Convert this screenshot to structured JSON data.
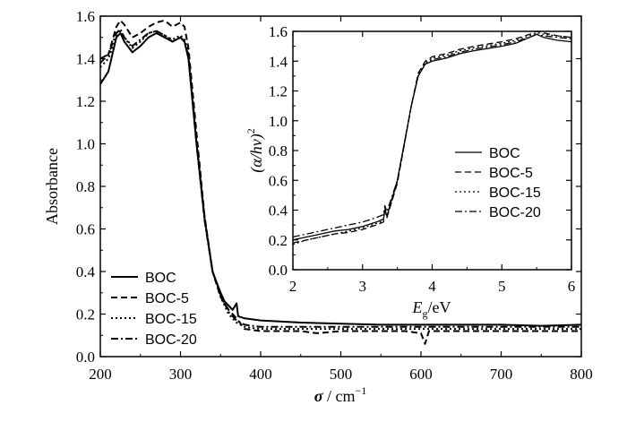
{
  "chart_data": [
    {
      "type": "line",
      "ylabel": "Absorbance",
      "xlabel_symbol": "σ",
      "xlabel_unit": "cm",
      "xlabel_exp": "−1",
      "xlim": [
        200,
        800
      ],
      "ylim": [
        0.0,
        1.6
      ],
      "xticks": [
        "200",
        "300",
        "400",
        "500",
        "600",
        "700",
        "800"
      ],
      "yticks": [
        "0.0",
        "0.2",
        "0.4",
        "0.6",
        "0.8",
        "1.0",
        "1.2",
        "1.4",
        "1.6"
      ],
      "legend_position": "bottom-left",
      "series": [
        {
          "name": "BOC",
          "style": "solid",
          "x": [
            200,
            210,
            220,
            225,
            230,
            240,
            250,
            260,
            270,
            280,
            290,
            300,
            305,
            310,
            320,
            330,
            340,
            350,
            355,
            360,
            365,
            370,
            372,
            380,
            400,
            450,
            500,
            550,
            600,
            650,
            700,
            750,
            800
          ],
          "y": [
            1.28,
            1.34,
            1.5,
            1.52,
            1.48,
            1.43,
            1.46,
            1.5,
            1.52,
            1.5,
            1.48,
            1.5,
            1.48,
            1.4,
            1.0,
            0.65,
            0.4,
            0.3,
            0.26,
            0.24,
            0.22,
            0.25,
            0.19,
            0.18,
            0.17,
            0.16,
            0.155,
            0.15,
            0.15,
            0.15,
            0.15,
            0.145,
            0.15
          ]
        },
        {
          "name": "BOC-5",
          "style": "dashed",
          "x": [
            200,
            210,
            220,
            225,
            230,
            240,
            250,
            260,
            270,
            280,
            290,
            300,
            305,
            310,
            320,
            330,
            340,
            350,
            360,
            365,
            370,
            380,
            400,
            450,
            470,
            500,
            550,
            580,
            600,
            605,
            610,
            650,
            700,
            750,
            800
          ],
          "y": [
            1.38,
            1.42,
            1.55,
            1.58,
            1.56,
            1.5,
            1.52,
            1.55,
            1.57,
            1.58,
            1.55,
            1.57,
            1.55,
            1.45,
            1.05,
            0.66,
            0.4,
            0.28,
            0.22,
            0.2,
            0.18,
            0.13,
            0.12,
            0.12,
            0.11,
            0.12,
            0.12,
            0.12,
            0.11,
            0.06,
            0.12,
            0.12,
            0.12,
            0.12,
            0.12
          ]
        },
        {
          "name": "BOC-15",
          "style": "dotted",
          "x": [
            200,
            210,
            220,
            225,
            230,
            240,
            250,
            260,
            270,
            280,
            290,
            300,
            305,
            310,
            320,
            330,
            340,
            350,
            360,
            370,
            380,
            400,
            450,
            500,
            550,
            600,
            650,
            700,
            750,
            800
          ],
          "y": [
            1.36,
            1.4,
            1.5,
            1.53,
            1.5,
            1.45,
            1.48,
            1.52,
            1.53,
            1.51,
            1.49,
            1.51,
            1.49,
            1.42,
            1.02,
            0.65,
            0.4,
            0.28,
            0.2,
            0.16,
            0.14,
            0.13,
            0.13,
            0.13,
            0.13,
            0.13,
            0.13,
            0.13,
            0.13,
            0.13
          ]
        },
        {
          "name": "BOC-20",
          "style": "dashdot",
          "x": [
            200,
            210,
            220,
            225,
            230,
            240,
            250,
            260,
            270,
            280,
            290,
            300,
            305,
            310,
            320,
            330,
            340,
            350,
            360,
            370,
            380,
            400,
            450,
            500,
            550,
            600,
            650,
            700,
            750,
            800
          ],
          "y": [
            1.4,
            1.42,
            1.52,
            1.54,
            1.5,
            1.46,
            1.49,
            1.52,
            1.53,
            1.51,
            1.48,
            1.5,
            1.48,
            1.41,
            1.0,
            0.64,
            0.4,
            0.29,
            0.21,
            0.17,
            0.15,
            0.14,
            0.14,
            0.14,
            0.14,
            0.14,
            0.14,
            0.14,
            0.14,
            0.14
          ]
        }
      ]
    },
    {
      "type": "line",
      "role": "inset",
      "ylabel_main": "(α/hν)",
      "ylabel_exp": "2",
      "xlabel_symbol": "E",
      "xlabel_sub": "g",
      "xlabel_unit": "/eV",
      "xlim": [
        2,
        6
      ],
      "ylim": [
        0.0,
        1.6
      ],
      "xticks": [
        "2",
        "3",
        "4",
        "5",
        "6"
      ],
      "yticks": [
        "0.0",
        "0.2",
        "0.4",
        "0.6",
        "0.8",
        "1.0",
        "1.2",
        "1.4",
        "1.6"
      ],
      "legend_position": "right-middle",
      "series": [
        {
          "name": "BOC",
          "style": "solid",
          "x": [
            2.0,
            2.2,
            2.4,
            2.6,
            2.8,
            3.0,
            3.2,
            3.3,
            3.32,
            3.35,
            3.5,
            3.6,
            3.7,
            3.8,
            3.9,
            4.0,
            4.2,
            4.4,
            4.6,
            5.0,
            5.2,
            5.4,
            5.5,
            5.6,
            5.8,
            6.0
          ],
          "y": [
            0.2,
            0.22,
            0.24,
            0.26,
            0.27,
            0.29,
            0.32,
            0.34,
            0.4,
            0.36,
            0.6,
            0.85,
            1.1,
            1.3,
            1.38,
            1.4,
            1.42,
            1.45,
            1.47,
            1.5,
            1.52,
            1.56,
            1.58,
            1.56,
            1.54,
            1.53
          ]
        },
        {
          "name": "BOC-5",
          "style": "dashed",
          "x": [
            2.0,
            2.2,
            2.4,
            2.6,
            2.8,
            3.0,
            3.2,
            3.3,
            3.32,
            3.35,
            3.5,
            3.6,
            3.7,
            3.8,
            3.9,
            4.0,
            4.2,
            4.4,
            4.6,
            5.0,
            5.2,
            5.4,
            5.5,
            5.6,
            5.8,
            6.0
          ],
          "y": [
            0.18,
            0.2,
            0.22,
            0.24,
            0.25,
            0.27,
            0.3,
            0.32,
            0.42,
            0.35,
            0.58,
            0.84,
            1.1,
            1.32,
            1.4,
            1.43,
            1.45,
            1.48,
            1.5,
            1.53,
            1.55,
            1.58,
            1.6,
            1.59,
            1.57,
            1.56
          ]
        },
        {
          "name": "BOC-15",
          "style": "dotted",
          "x": [
            2.0,
            2.2,
            2.4,
            2.6,
            2.8,
            3.0,
            3.2,
            3.3,
            3.32,
            3.35,
            3.5,
            3.6,
            3.7,
            3.8,
            3.9,
            4.0,
            4.2,
            4.4,
            4.6,
            5.0,
            5.2,
            5.4,
            5.5,
            5.6,
            5.8,
            6.0
          ],
          "y": [
            0.17,
            0.2,
            0.22,
            0.24,
            0.26,
            0.28,
            0.31,
            0.33,
            0.4,
            0.35,
            0.59,
            0.84,
            1.1,
            1.31,
            1.39,
            1.42,
            1.44,
            1.47,
            1.49,
            1.52,
            1.54,
            1.57,
            1.59,
            1.58,
            1.57,
            1.56
          ]
        },
        {
          "name": "BOC-20",
          "style": "dashdot",
          "x": [
            2.0,
            2.2,
            2.4,
            2.6,
            2.8,
            3.0,
            3.2,
            3.3,
            3.32,
            3.35,
            3.5,
            3.6,
            3.7,
            3.8,
            3.9,
            4.0,
            4.2,
            4.4,
            4.6,
            5.0,
            5.2,
            5.4,
            5.5,
            5.6,
            5.8,
            6.0
          ],
          "y": [
            0.22,
            0.24,
            0.26,
            0.28,
            0.3,
            0.32,
            0.35,
            0.37,
            0.43,
            0.39,
            0.6,
            0.85,
            1.1,
            1.3,
            1.38,
            1.41,
            1.43,
            1.46,
            1.48,
            1.51,
            1.53,
            1.56,
            1.58,
            1.57,
            1.56,
            1.55
          ]
        }
      ]
    }
  ]
}
